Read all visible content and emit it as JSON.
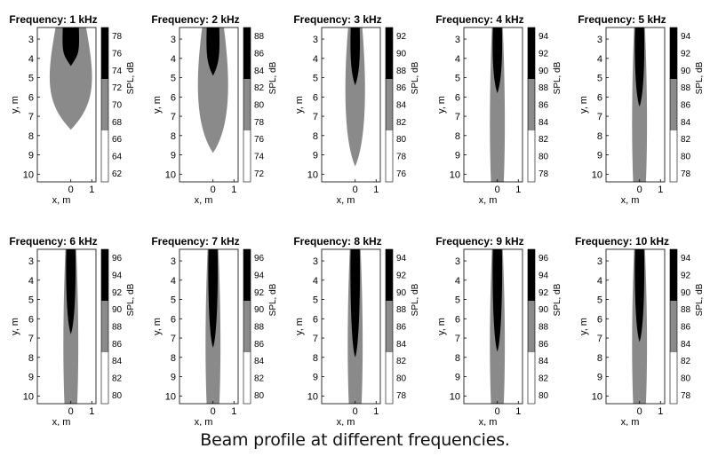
{
  "caption": "Beam profile at different frequencies.",
  "chart_data": [
    {
      "type": "heatmap",
      "title": "Frequency: 1 kHz",
      "xlabel": "x, m",
      "ylabel": "y, m",
      "colorbar_label": "SPL, dB",
      "x_ticks": [
        "0",
        "1"
      ],
      "y_ticks": [
        "3",
        "4",
        "5",
        "6",
        "7",
        "8",
        "9",
        "10"
      ],
      "colorbar_ticks": [
        "78",
        "76",
        "74",
        "72",
        "70",
        "68",
        "66",
        "64",
        "62"
      ],
      "levels": {
        "black": "> 74",
        "gray": "68 to 74",
        "white": "< 68"
      },
      "black_region_y_end": 4.4,
      "gray_region_y_end": 7.7
    },
    {
      "type": "heatmap",
      "title": "Frequency: 2 kHz",
      "xlabel": "x, m",
      "ylabel": "y, m",
      "colorbar_label": "SPL, dB",
      "x_ticks": [
        "0",
        "1"
      ],
      "y_ticks": [
        "3",
        "4",
        "5",
        "6",
        "7",
        "8",
        "9",
        "10"
      ],
      "colorbar_ticks": [
        "88",
        "86",
        "84",
        "82",
        "80",
        "78",
        "76",
        "74",
        "72"
      ],
      "levels": {
        "black": "> 82",
        "gray": "76 to 82",
        "white": "< 76"
      },
      "black_region_y_end": 4.9,
      "gray_region_y_end": 8.9
    },
    {
      "type": "heatmap",
      "title": "Frequency: 3 kHz",
      "xlabel": "x, m",
      "ylabel": "y, m",
      "colorbar_label": "SPL, dB",
      "x_ticks": [
        "0",
        "1"
      ],
      "y_ticks": [
        "3",
        "4",
        "5",
        "6",
        "7",
        "8",
        "9",
        "10"
      ],
      "colorbar_ticks": [
        "92",
        "90",
        "88",
        "86",
        "84",
        "82",
        "80",
        "78",
        "76"
      ],
      "levels": {
        "black": "> 88",
        "gray": "82 to 88",
        "white": "< 82"
      },
      "black_region_y_end": 5.4,
      "gray_region_y_end": 9.6
    },
    {
      "type": "heatmap",
      "title": "Frequency: 4 kHz",
      "xlabel": "x, m",
      "ylabel": "y, m",
      "colorbar_label": "SPL, dB",
      "x_ticks": [
        "0",
        "1"
      ],
      "y_ticks": [
        "3",
        "4",
        "5",
        "6",
        "7",
        "8",
        "9",
        "10"
      ],
      "colorbar_ticks": [
        "94",
        "92",
        "90",
        "88",
        "86",
        "84",
        "82",
        "80",
        "78"
      ],
      "levels": {
        "black": "> 89",
        "gray": "84 to 89",
        "white": "< 84"
      },
      "black_region_y_end": 5.8,
      "gray_region_y_end": 10.4
    },
    {
      "type": "heatmap",
      "title": "Frequency: 5 kHz",
      "xlabel": "x, m",
      "ylabel": "y, m",
      "colorbar_label": "SPL, dB",
      "x_ticks": [
        "0",
        "1"
      ],
      "y_ticks": [
        "3",
        "4",
        "5",
        "6",
        "7",
        "8",
        "9",
        "10"
      ],
      "colorbar_ticks": [
        "94",
        "92",
        "90",
        "88",
        "86",
        "84",
        "82",
        "80",
        "78"
      ],
      "levels": {
        "black": "> 89",
        "gray": "84 to 89",
        "white": "< 84"
      },
      "black_region_y_end": 6.5,
      "gray_region_y_end": 10.4
    },
    {
      "type": "heatmap",
      "title": "Frequency: 6 kHz",
      "xlabel": "x, m",
      "ylabel": "y, m",
      "colorbar_label": "SPL, dB",
      "x_ticks": [
        "0",
        "1"
      ],
      "y_ticks": [
        "3",
        "4",
        "5",
        "6",
        "7",
        "8",
        "9",
        "10"
      ],
      "colorbar_ticks": [
        "96",
        "94",
        "92",
        "90",
        "88",
        "86",
        "84",
        "82",
        "80"
      ],
      "levels": {
        "black": "> 91",
        "gray": "86 to 91",
        "white": "< 86"
      },
      "black_region_y_end": 6.8,
      "gray_region_y_end": 10.4
    },
    {
      "type": "heatmap",
      "title": "Frequency: 7 kHz",
      "xlabel": "x, m",
      "ylabel": "y, m",
      "colorbar_label": "SPL, dB",
      "x_ticks": [
        "0",
        "1"
      ],
      "y_ticks": [
        "3",
        "4",
        "5",
        "6",
        "7",
        "8",
        "9",
        "10"
      ],
      "colorbar_ticks": [
        "96",
        "94",
        "92",
        "90",
        "88",
        "86",
        "84",
        "82",
        "80"
      ],
      "levels": {
        "black": "> 91",
        "gray": "86 to 91",
        "white": "< 86"
      },
      "black_region_y_end": 7.5,
      "gray_region_y_end": 10.4
    },
    {
      "type": "heatmap",
      "title": "Frequency: 8 kHz",
      "xlabel": "x, m",
      "ylabel": "y, m",
      "colorbar_label": "SPL, dB",
      "x_ticks": [
        "0",
        "1"
      ],
      "y_ticks": [
        "3",
        "4",
        "5",
        "6",
        "7",
        "8",
        "9",
        "10"
      ],
      "colorbar_ticks": [
        "94",
        "92",
        "90",
        "88",
        "86",
        "84",
        "82",
        "80",
        "78"
      ],
      "levels": {
        "black": "> 89",
        "gray": "84 to 89",
        "white": "< 84"
      },
      "black_region_y_end": 8.0,
      "gray_region_y_end": 10.4
    },
    {
      "type": "heatmap",
      "title": "Frequency: 9 kHz",
      "xlabel": "x, m",
      "ylabel": "y, m",
      "colorbar_label": "SPL, dB",
      "x_ticks": [
        "0",
        "1"
      ],
      "y_ticks": [
        "3",
        "4",
        "5",
        "6",
        "7",
        "8",
        "9",
        "10"
      ],
      "colorbar_ticks": [
        "96",
        "94",
        "92",
        "90",
        "88",
        "86",
        "84",
        "82",
        "80"
      ],
      "levels": {
        "black": "> 91",
        "gray": "86 to 91",
        "white": "< 86"
      },
      "black_region_y_end": 7.7,
      "gray_region_y_end": 10.4
    },
    {
      "type": "heatmap",
      "title": "Frequency: 10 kHz",
      "xlabel": "x, m",
      "ylabel": "y, m",
      "colorbar_label": "SPL, dB",
      "x_ticks": [
        "0",
        "1"
      ],
      "y_ticks": [
        "3",
        "4",
        "5",
        "6",
        "7",
        "8",
        "9",
        "10"
      ],
      "colorbar_ticks": [
        "94",
        "92",
        "90",
        "88",
        "86",
        "84",
        "82",
        "80",
        "78"
      ],
      "levels": {
        "black": "> 89",
        "gray": "84 to 89",
        "white": "< 84"
      },
      "black_region_y_end": 7.2,
      "gray_region_y_end": 10.4
    }
  ],
  "colors": {
    "black": "#000000",
    "gray": "#8a8a8a",
    "white": "#ffffff",
    "axis": "#000000"
  }
}
